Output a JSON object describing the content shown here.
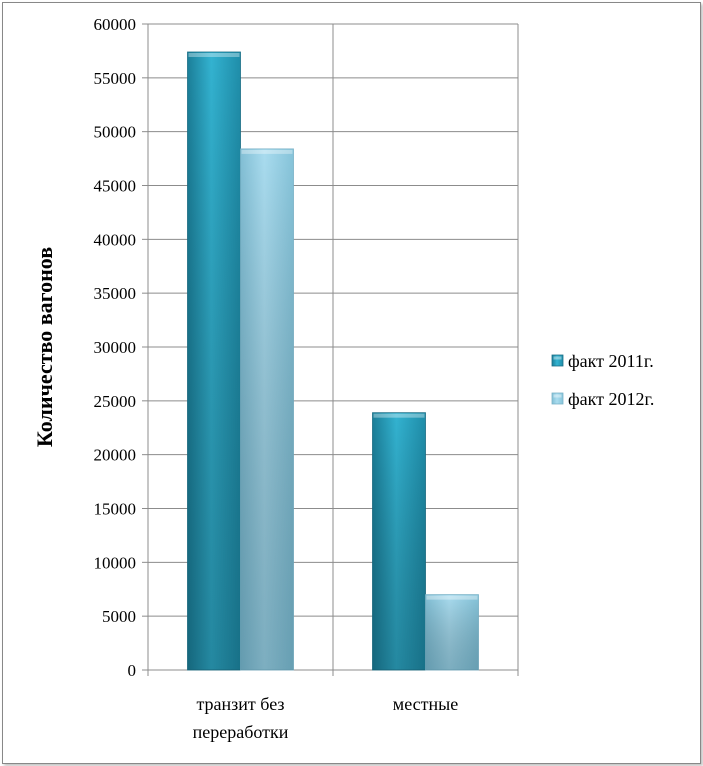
{
  "chart_data": {
    "type": "bar",
    "title": "",
    "xlabel": "",
    "ylabel": "Количество  вагонов",
    "ylim": [
      0,
      60000
    ],
    "yticks": [
      0,
      5000,
      10000,
      15000,
      20000,
      25000,
      30000,
      35000,
      40000,
      45000,
      50000,
      55000,
      60000
    ],
    "categories": [
      "транзит без переработки",
      "местные"
    ],
    "category_lines": [
      [
        "транзит без",
        "переработки"
      ],
      [
        "местные"
      ]
    ],
    "series": [
      {
        "name": "факт 2011г.",
        "values": [
          57400,
          23900
        ],
        "color": "#2aa3c0"
      },
      {
        "name": "факт 2012г.",
        "values": [
          48400,
          7000
        ],
        "color": "#8fcfe6"
      }
    ],
    "grid": true,
    "legend_position": "right",
    "three_d": true
  }
}
